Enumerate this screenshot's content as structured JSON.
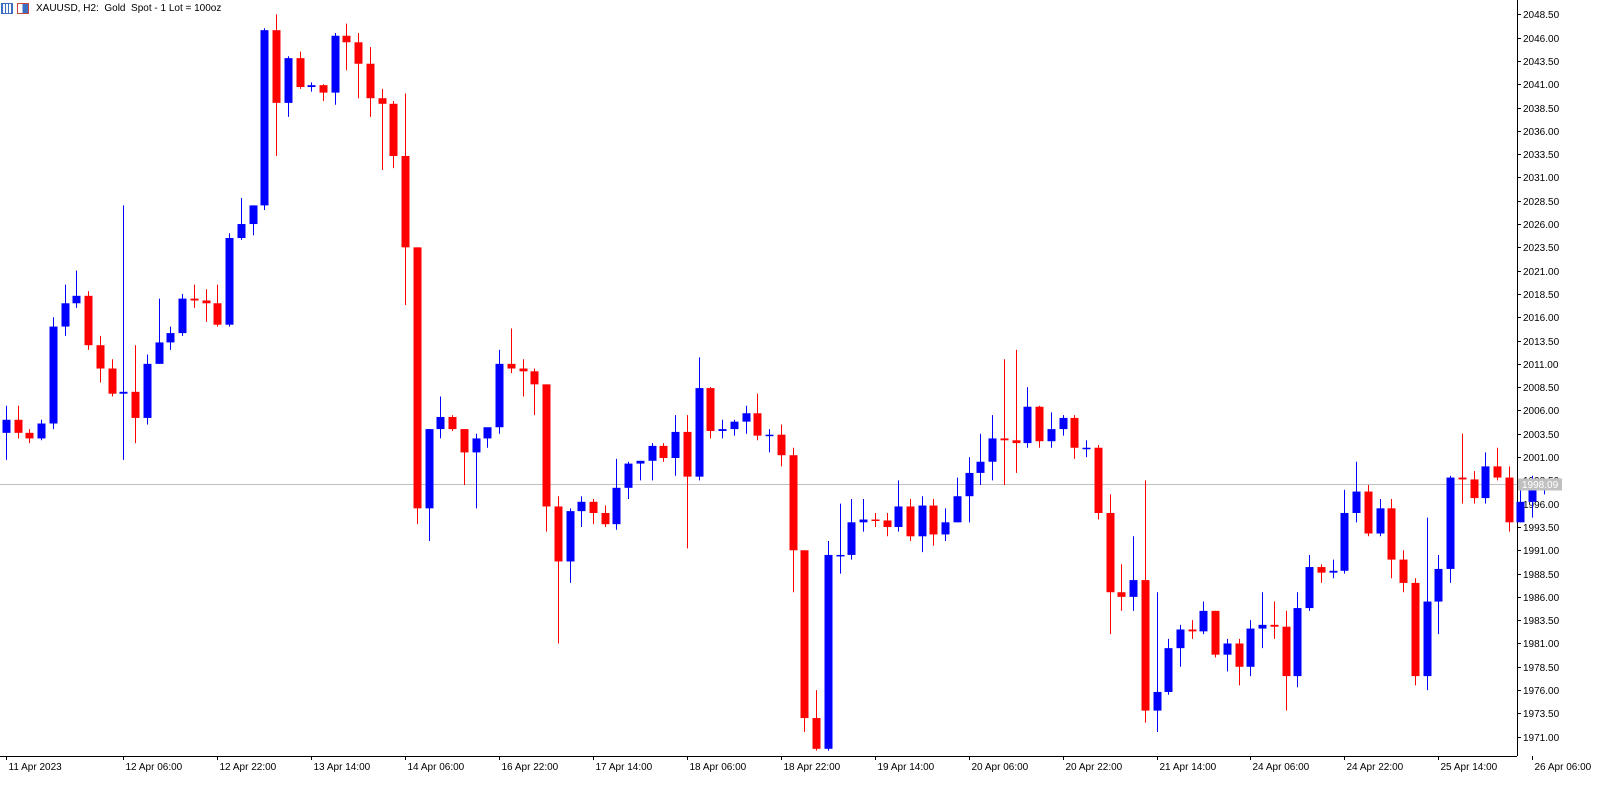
{
  "header": {
    "symbol_text": "XAUUSD, H2:  Gold  Spot - 1 Lot = 100oz",
    "icons": [
      "chart-grid-icon",
      "object-list-icon"
    ]
  },
  "colors": {
    "bull": "#0000ff",
    "bear": "#ff0000",
    "axis": "#000000",
    "background": "#ffffff",
    "price_line": "#c0c0c0",
    "price_label_bg": "#c0c0c0",
    "price_label_text": "#ffffff"
  },
  "chart_data": {
    "type": "candlestick",
    "symbol": "XAUUSD",
    "timeframe": "H2",
    "ylim": [
      1968.5,
      2049.5
    ],
    "y_ticks": [
      1971.0,
      1973.5,
      1976.0,
      1978.5,
      1981.0,
      1983.5,
      1986.0,
      1988.5,
      1991.0,
      1993.5,
      1996.0,
      1998.5,
      2001.0,
      2003.5,
      2006.0,
      2008.5,
      2011.0,
      2013.5,
      2016.0,
      2018.5,
      2021.0,
      2023.5,
      2026.0,
      2028.5,
      2031.0,
      2033.5,
      2036.0,
      2038.5,
      2041.0,
      2043.5,
      2046.0,
      2048.5
    ],
    "current_price_label": "1998.09",
    "current_price": 1998.09,
    "x_labels": [
      {
        "text": "11 Apr 2023",
        "bar": 0
      },
      {
        "text": "12 Apr 06:00",
        "bar": 10
      },
      {
        "text": "12 Apr 22:00",
        "bar": 18
      },
      {
        "text": "13 Apr 14:00",
        "bar": 26
      },
      {
        "text": "14 Apr 06:00",
        "bar": 34
      },
      {
        "text": "16 Apr 22:00",
        "bar": 42
      },
      {
        "text": "17 Apr 14:00",
        "bar": 50
      },
      {
        "text": "18 Apr 06:00",
        "bar": 58
      },
      {
        "text": "18 Apr 22:00",
        "bar": 66
      },
      {
        "text": "19 Apr 14:00",
        "bar": 74
      },
      {
        "text": "20 Apr 06:00",
        "bar": 82
      },
      {
        "text": "20 Apr 22:00",
        "bar": 90
      },
      {
        "text": "21 Apr 14:00",
        "bar": 98
      },
      {
        "text": "24 Apr 06:00",
        "bar": 106
      },
      {
        "text": "24 Apr 22:00",
        "bar": 114
      },
      {
        "text": "25 Apr 14:00",
        "bar": 122
      },
      {
        "text": "26 Apr 06:00",
        "bar": 130
      }
    ],
    "candles": [
      [
        2003.6,
        2006.5,
        2000.7,
        2005.0
      ],
      [
        2005.0,
        2006.5,
        2003.0,
        2003.6
      ],
      [
        2003.6,
        2004.0,
        2002.5,
        2003.0
      ],
      [
        2003.0,
        2005.0,
        2002.8,
        2004.6
      ],
      [
        2004.6,
        2016.0,
        2004.0,
        2015.0
      ],
      [
        2015.0,
        2019.5,
        2014.0,
        2017.5
      ],
      [
        2017.5,
        2021.0,
        2017.0,
        2018.3
      ],
      [
        2018.3,
        2018.8,
        2012.5,
        2013.0
      ],
      [
        2013.0,
        2014.0,
        2009.0,
        2010.5
      ],
      [
        2010.5,
        2011.5,
        2007.5,
        2007.8
      ],
      [
        2007.8,
        2028.0,
        2000.7,
        2008.0
      ],
      [
        2008.0,
        2013.0,
        2002.5,
        2005.2
      ],
      [
        2005.2,
        2012.0,
        2004.5,
        2011.0
      ],
      [
        2011.0,
        2018.0,
        2011.0,
        2013.3
      ],
      [
        2013.3,
        2015.0,
        2012.5,
        2014.3
      ],
      [
        2014.3,
        2018.5,
        2014.0,
        2018.0
      ],
      [
        2018.0,
        2019.5,
        2017.0,
        2017.8
      ],
      [
        2017.8,
        2019.0,
        2015.5,
        2017.5
      ],
      [
        2017.5,
        2019.5,
        2015.0,
        2015.2
      ],
      [
        2015.2,
        2025.0,
        2015.0,
        2024.5
      ],
      [
        2024.5,
        2028.8,
        2024.3,
        2026.0
      ],
      [
        2026.0,
        2028.0,
        2024.8,
        2028.0
      ],
      [
        2028.0,
        2047.0,
        2027.5,
        2046.8
      ],
      [
        2046.8,
        2048.5,
        2033.3,
        2039.0
      ],
      [
        2039.0,
        2044.0,
        2037.5,
        2043.8
      ],
      [
        2043.8,
        2044.5,
        2040.5,
        2040.7
      ],
      [
        2040.7,
        2041.2,
        2040.2,
        2040.9
      ],
      [
        2040.9,
        2041.0,
        2039.2,
        2040.1
      ],
      [
        2040.1,
        2046.5,
        2038.8,
        2046.2
      ],
      [
        2046.2,
        2047.5,
        2042.5,
        2045.5
      ],
      [
        2045.5,
        2046.5,
        2039.5,
        2043.2
      ],
      [
        2043.2,
        2045.0,
        2037.5,
        2039.5
      ],
      [
        2039.5,
        2040.5,
        2031.8,
        2038.9
      ],
      [
        2038.9,
        2039.2,
        2032.0,
        2033.3
      ],
      [
        2033.3,
        2040.0,
        2017.3,
        2023.5
      ],
      [
        2023.5,
        2023.5,
        1993.8,
        1995.5
      ],
      [
        1995.5,
        2004.0,
        1992.0,
        2004.0
      ],
      [
        2004.0,
        2007.5,
        2003.0,
        2005.3
      ],
      [
        2005.3,
        2005.5,
        2003.8,
        2004.0
      ],
      [
        2004.0,
        2004.0,
        1998.0,
        2001.5
      ],
      [
        2001.5,
        2003.5,
        1995.5,
        2003.0
      ],
      [
        2003.0,
        2004.0,
        2002.0,
        2004.2
      ],
      [
        2004.2,
        2012.5,
        2003.5,
        2011.0
      ],
      [
        2011.0,
        2014.8,
        2010.0,
        2010.5
      ],
      [
        2010.5,
        2011.5,
        2007.5,
        2010.2
      ],
      [
        2010.2,
        2010.5,
        2005.5,
        2008.8
      ],
      [
        2008.8,
        2008.8,
        1993.0,
        1995.7
      ],
      [
        1995.7,
        1996.8,
        1981.0,
        1989.8
      ],
      [
        1989.8,
        1995.5,
        1987.5,
        1995.2
      ],
      [
        1995.2,
        1996.8,
        1993.5,
        1996.2
      ],
      [
        1996.2,
        1996.5,
        1993.8,
        1995.0
      ],
      [
        1995.0,
        1995.8,
        1993.5,
        1993.8
      ],
      [
        1993.8,
        2000.8,
        1993.2,
        1997.7
      ],
      [
        1997.7,
        2000.5,
        1996.5,
        2000.3
      ],
      [
        2000.3,
        2000.5,
        1998.5,
        2000.6
      ],
      [
        2000.6,
        2002.5,
        1998.5,
        2002.2
      ],
      [
        2002.2,
        2002.5,
        2000.5,
        2000.9
      ],
      [
        2000.9,
        2005.5,
        1999.0,
        2003.7
      ],
      [
        2003.7,
        2005.5,
        1991.2,
        1998.9
      ],
      [
        1998.9,
        2011.7,
        1998.5,
        2008.4
      ],
      [
        2008.4,
        2008.5,
        2003.0,
        2003.8
      ],
      [
        2003.8,
        2005.0,
        2003.0,
        2004.0
      ],
      [
        2004.0,
        2005.0,
        2003.3,
        2004.8
      ],
      [
        2004.8,
        2006.5,
        2003.5,
        2005.7
      ],
      [
        2005.7,
        2007.8,
        2002.8,
        2003.3
      ],
      [
        2003.3,
        2004.0,
        2001.5,
        2003.4
      ],
      [
        2003.4,
        2004.5,
        2000.0,
        2001.2
      ],
      [
        2001.2,
        2002.0,
        1986.5,
        1991.0
      ],
      [
        1991.0,
        1991.0,
        1971.5,
        1973.0
      ],
      [
        1973.0,
        1976.0,
        1969.5,
        1969.7
      ],
      [
        1969.7,
        1992.0,
        1969.5,
        1990.5
      ],
      [
        1990.5,
        1996.0,
        1988.5,
        1990.5
      ],
      [
        1990.5,
        1996.5,
        1990.0,
        1994.0
      ],
      [
        1994.0,
        1996.5,
        1993.0,
        1994.3
      ],
      [
        1994.3,
        1995.0,
        1993.5,
        1994.2
      ],
      [
        1994.2,
        1995.0,
        1992.5,
        1993.5
      ],
      [
        1993.5,
        1998.5,
        1993.0,
        1995.7
      ],
      [
        1995.7,
        1996.5,
        1992.0,
        1992.5
      ],
      [
        1992.5,
        1996.8,
        1990.8,
        1995.8
      ],
      [
        1995.8,
        1996.5,
        1991.5,
        1992.7
      ],
      [
        1992.7,
        1995.5,
        1992.0,
        1994.0
      ],
      [
        1994.0,
        1998.8,
        1994.0,
        1996.8
      ],
      [
        1996.8,
        2001.0,
        1994.0,
        1999.3
      ],
      [
        1999.3,
        2003.5,
        1998.0,
        2000.5
      ],
      [
        2000.5,
        2005.5,
        1998.5,
        2003.0
      ],
      [
        2003.0,
        2011.5,
        1998.0,
        2002.8
      ],
      [
        2002.8,
        2012.5,
        1999.3,
        2002.5
      ],
      [
        2002.5,
        2008.5,
        2002.0,
        2006.4
      ],
      [
        2006.4,
        2006.5,
        2002.0,
        2002.7
      ],
      [
        2002.7,
        2005.8,
        2002.0,
        2004.0
      ],
      [
        2004.0,
        2005.5,
        2003.3,
        2005.2
      ],
      [
        2005.2,
        2005.5,
        2000.8,
        2002.0
      ],
      [
        2002.0,
        2002.8,
        2001.0,
        2002.0
      ],
      [
        2002.0,
        2002.3,
        1994.3,
        1995.0
      ],
      [
        1995.0,
        1997.0,
        1982.0,
        1986.5
      ],
      [
        1986.5,
        1989.5,
        1984.5,
        1986.0
      ],
      [
        1986.0,
        1992.5,
        1984.5,
        1987.8
      ],
      [
        1987.8,
        1998.5,
        1972.5,
        1973.8
      ],
      [
        1973.8,
        1986.5,
        1971.5,
        1975.8
      ],
      [
        1975.8,
        1981.5,
        1975.5,
        1980.5
      ],
      [
        1980.5,
        1983.0,
        1978.5,
        1982.5
      ],
      [
        1982.5,
        1983.5,
        1981.5,
        1982.3
      ],
      [
        1982.3,
        1985.5,
        1982.0,
        1984.5
      ],
      [
        1984.5,
        1984.5,
        1979.5,
        1979.8
      ],
      [
        1979.8,
        1981.5,
        1978.0,
        1981.0
      ],
      [
        1981.0,
        1981.5,
        1976.5,
        1978.5
      ],
      [
        1978.5,
        1983.5,
        1977.5,
        1982.6
      ],
      [
        1982.6,
        1986.5,
        1980.5,
        1983.0
      ],
      [
        1983.0,
        1985.5,
        1981.5,
        1982.8
      ],
      [
        1982.8,
        1984.5,
        1973.8,
        1977.5
      ],
      [
        1977.5,
        1986.5,
        1976.3,
        1984.8
      ],
      [
        1984.8,
        1990.5,
        1984.5,
        1989.2
      ],
      [
        1989.2,
        1989.5,
        1987.5,
        1988.6
      ],
      [
        1988.6,
        1990.0,
        1988.0,
        1988.8
      ],
      [
        1988.8,
        1997.5,
        1988.5,
        1995.0
      ],
      [
        1995.0,
        2000.5,
        1994.0,
        1997.3
      ],
      [
        1997.3,
        1998.0,
        1992.5,
        1992.8
      ],
      [
        1992.8,
        1996.5,
        1992.5,
        1995.5
      ],
      [
        1995.5,
        1996.5,
        1988.0,
        1990.0
      ],
      [
        1990.0,
        1991.0,
        1986.5,
        1987.5
      ],
      [
        1987.5,
        1988.0,
        1976.5,
        1977.5
      ],
      [
        1977.5,
        1994.5,
        1976.0,
        1985.5
      ],
      [
        1985.5,
        1990.5,
        1982.0,
        1989.0
      ],
      [
        1989.0,
        1999.0,
        1987.5,
        1998.8
      ],
      [
        1998.8,
        2003.5,
        1996.0,
        1998.6
      ],
      [
        1998.6,
        1999.5,
        1996.0,
        1996.6
      ],
      [
        1996.6,
        2001.5,
        1996.0,
        2000.0
      ],
      [
        2000.0,
        2002.0,
        1998.5,
        1998.8
      ],
      [
        1998.8,
        2000.0,
        1993.0,
        1994.0
      ],
      [
        1994.0,
        1997.5,
        1994.0,
        1996.2
      ],
      [
        1996.2,
        1999.0,
        1994.5,
        1997.8
      ],
      [
        1997.8,
        1998.5,
        1997.0,
        1998.1
      ]
    ]
  }
}
